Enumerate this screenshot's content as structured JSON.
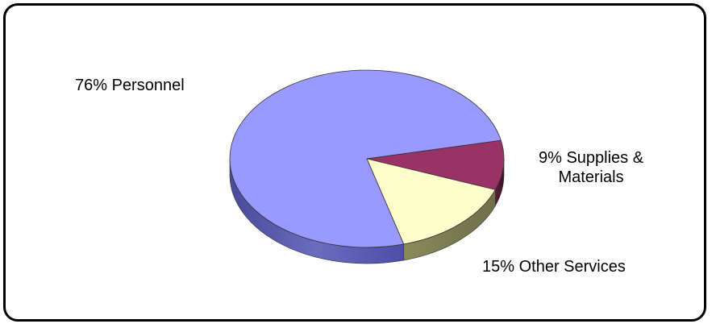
{
  "chart_data": {
    "type": "pie",
    "style": "3d",
    "categories": [
      "Personnel",
      "Other Services",
      "Supplies & Materials"
    ],
    "values": [
      76,
      15,
      9
    ],
    "unit": "%",
    "colors": {
      "Personnel": "#9999ff",
      "Other Services": "#ffffcc",
      "Supplies & Materials": "#993366"
    },
    "labels": {
      "personnel": "76% Personnel",
      "supplies_line1": "9% Supplies &",
      "supplies_line2": "Materials",
      "other": "15% Other Services"
    },
    "title": "",
    "legend": "none"
  }
}
